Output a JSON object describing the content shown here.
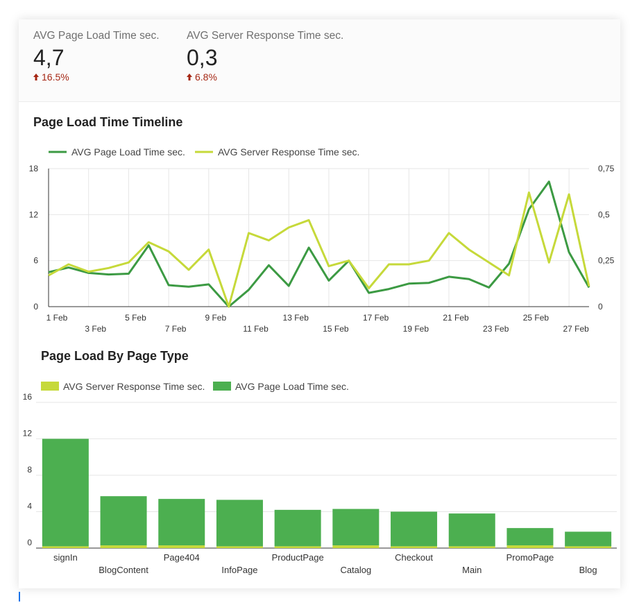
{
  "kpis": [
    {
      "label": "AVG Page Load Time sec.",
      "value": "4,7",
      "change": "16.5%",
      "change_color": "#a52714"
    },
    {
      "label": "AVG Server Response Time sec.",
      "value": "0,3",
      "change": "6.8%",
      "change_color": "#a52714"
    }
  ],
  "titles": {
    "timeline": "Page Load Time Timeline",
    "by_type": "Page Load By Page Type"
  },
  "colors": {
    "load": "#3c9a43",
    "server": "#c6d93a",
    "bar_load": "#4caf50",
    "bar_server": "#c6d93a",
    "grid": "#e6e6e6"
  },
  "chart_data": [
    {
      "type": "line",
      "title": "Page Load Time Timeline",
      "legend": [
        "AVG Page Load Time sec.",
        "AVG Server Response Time sec."
      ],
      "legend_position": "top-left",
      "x": [
        "1 Feb",
        "2 Feb",
        "3 Feb",
        "4 Feb",
        "5 Feb",
        "6 Feb",
        "7 Feb",
        "8 Feb",
        "9 Feb",
        "10 Feb",
        "11 Feb",
        "12 Feb",
        "13 Feb",
        "14 Feb",
        "15 Feb",
        "16 Feb",
        "17 Feb",
        "18 Feb",
        "19 Feb",
        "20 Feb",
        "21 Feb",
        "22 Feb",
        "23 Feb",
        "24 Feb",
        "25 Feb",
        "26 Feb",
        "27 Feb",
        "28 Feb"
      ],
      "x_tick_labels": [
        {
          "label": "1 Feb",
          "index": 0,
          "row": 0
        },
        {
          "label": "3 Feb",
          "index": 2,
          "row": 1
        },
        {
          "label": "5 Feb",
          "index": 4,
          "row": 0
        },
        {
          "label": "7 Feb",
          "index": 6,
          "row": 1
        },
        {
          "label": "9 Feb",
          "index": 8,
          "row": 0
        },
        {
          "label": "11 Feb",
          "index": 10,
          "row": 1
        },
        {
          "label": "13 Feb",
          "index": 12,
          "row": 0
        },
        {
          "label": "15 Feb",
          "index": 14,
          "row": 1
        },
        {
          "label": "17 Feb",
          "index": 16,
          "row": 0
        },
        {
          "label": "19 Feb",
          "index": 18,
          "row": 1
        },
        {
          "label": "21 Feb",
          "index": 20,
          "row": 0
        },
        {
          "label": "23 Feb",
          "index": 22,
          "row": 1
        },
        {
          "label": "25 Feb",
          "index": 24,
          "row": 0
        },
        {
          "label": "27 Feb",
          "index": 26,
          "row": 1
        }
      ],
      "series": [
        {
          "name": "AVG Page Load Time sec.",
          "axis": "left",
          "values": [
            4.5,
            5.1,
            4.4,
            4.2,
            4.3,
            8.0,
            2.8,
            2.6,
            2.9,
            0.0,
            2.2,
            5.4,
            2.7,
            7.7,
            3.4,
            6.0,
            1.8,
            2.3,
            3.0,
            3.1,
            3.9,
            3.6,
            2.5,
            5.6,
            12.7,
            16.3,
            7.1,
            2.5
          ]
        },
        {
          "name": "AVG Server Response Time sec.",
          "axis": "right",
          "values": [
            0.17,
            0.23,
            0.19,
            0.21,
            0.24,
            0.35,
            0.3,
            0.2,
            0.31,
            0.0,
            0.4,
            0.36,
            0.43,
            0.47,
            0.22,
            0.25,
            0.1,
            0.23,
            0.23,
            0.25,
            0.4,
            0.31,
            0.24,
            0.17,
            0.62,
            0.24,
            0.61,
            0.11
          ]
        }
      ],
      "ylim_left": [
        0,
        18
      ],
      "yticks_left": [
        "0",
        "6",
        "12",
        "18"
      ],
      "ylim_right": [
        0,
        0.75
      ],
      "yticks_right": [
        "0",
        "0,25",
        "0,5",
        "0,75"
      ],
      "grid": true
    },
    {
      "type": "bar",
      "stacked": true,
      "title": "Page Load By Page Type",
      "legend": [
        "AVG Server Response Time sec.",
        "AVG Page Load Time sec."
      ],
      "legend_position": "top-left",
      "categories": [
        "signIn",
        "BlogContent",
        "Page404",
        "InfoPage",
        "ProductPage",
        "Catalog",
        "Checkout",
        "Main",
        "PromoPage",
        "Blog"
      ],
      "series": [
        {
          "name": "AVG Server Response Time sec.",
          "values": [
            0.2,
            0.3,
            0.3,
            0.2,
            0.2,
            0.3,
            0.2,
            0.2,
            0.3,
            0.2
          ]
        },
        {
          "name": "AVG Page Load Time sec.",
          "values": [
            11.8,
            5.4,
            5.1,
            5.1,
            4.0,
            4.0,
            3.8,
            3.6,
            1.9,
            1.6
          ]
        }
      ],
      "ylim": [
        0,
        16
      ],
      "yticks": [
        "0",
        "4",
        "8",
        "12",
        "16"
      ],
      "grid": true
    }
  ]
}
